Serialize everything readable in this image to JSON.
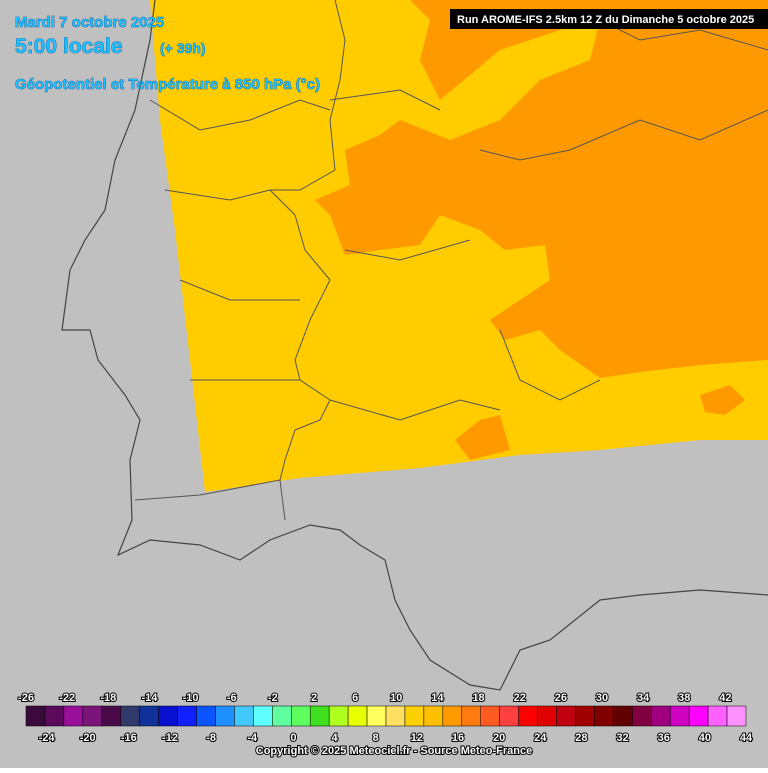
{
  "header": {
    "date": "Mardi 7 octobre 2025",
    "time": "5:00 locale",
    "lead": "(+ 39h)",
    "subtitle": "Géopotentiel et Température à 850 hPa (°c)",
    "run": "Run AROME-IFS 2.5km 12 Z du Dimanche 5 octobre 2025"
  },
  "legend": {
    "top_labels": [
      -26,
      -22,
      -18,
      -14,
      -10,
      -6,
      -2,
      2,
      6,
      10,
      14,
      18,
      22,
      26,
      30,
      34,
      38,
      42
    ],
    "bottom_labels": [
      -24,
      -20,
      -16,
      -12,
      -8,
      -4,
      0,
      4,
      8,
      12,
      16,
      20,
      24,
      28,
      32,
      36,
      40,
      44
    ],
    "colors": [
      "#3a0a3a",
      "#5c0a5c",
      "#9a0f9a",
      "#7a157a",
      "#4a0a4a",
      "#2f3a6a",
      "#10309a",
      "#0a10d0",
      "#1020ff",
      "#0a55ff",
      "#1e90ff",
      "#40c8ff",
      "#60ffff",
      "#60ffa0",
      "#60ff60",
      "#40e020",
      "#b0ff20",
      "#e8ff00",
      "#ffff60",
      "#ffe060",
      "#ffd000",
      "#ffc000",
      "#ff9a00",
      "#ff7a10",
      "#ff5a20",
      "#ff4040",
      "#ff0000",
      "#e00000",
      "#c00010",
      "#a00000",
      "#800000",
      "#600000",
      "#800040",
      "#a00080",
      "#d000c0",
      "#ff00ff",
      "#ff60ff",
      "#ff90ff"
    ]
  },
  "footer": {
    "copyright": "Copyright © 2025 Meteociel.fr - Source Meteo-France"
  }
}
